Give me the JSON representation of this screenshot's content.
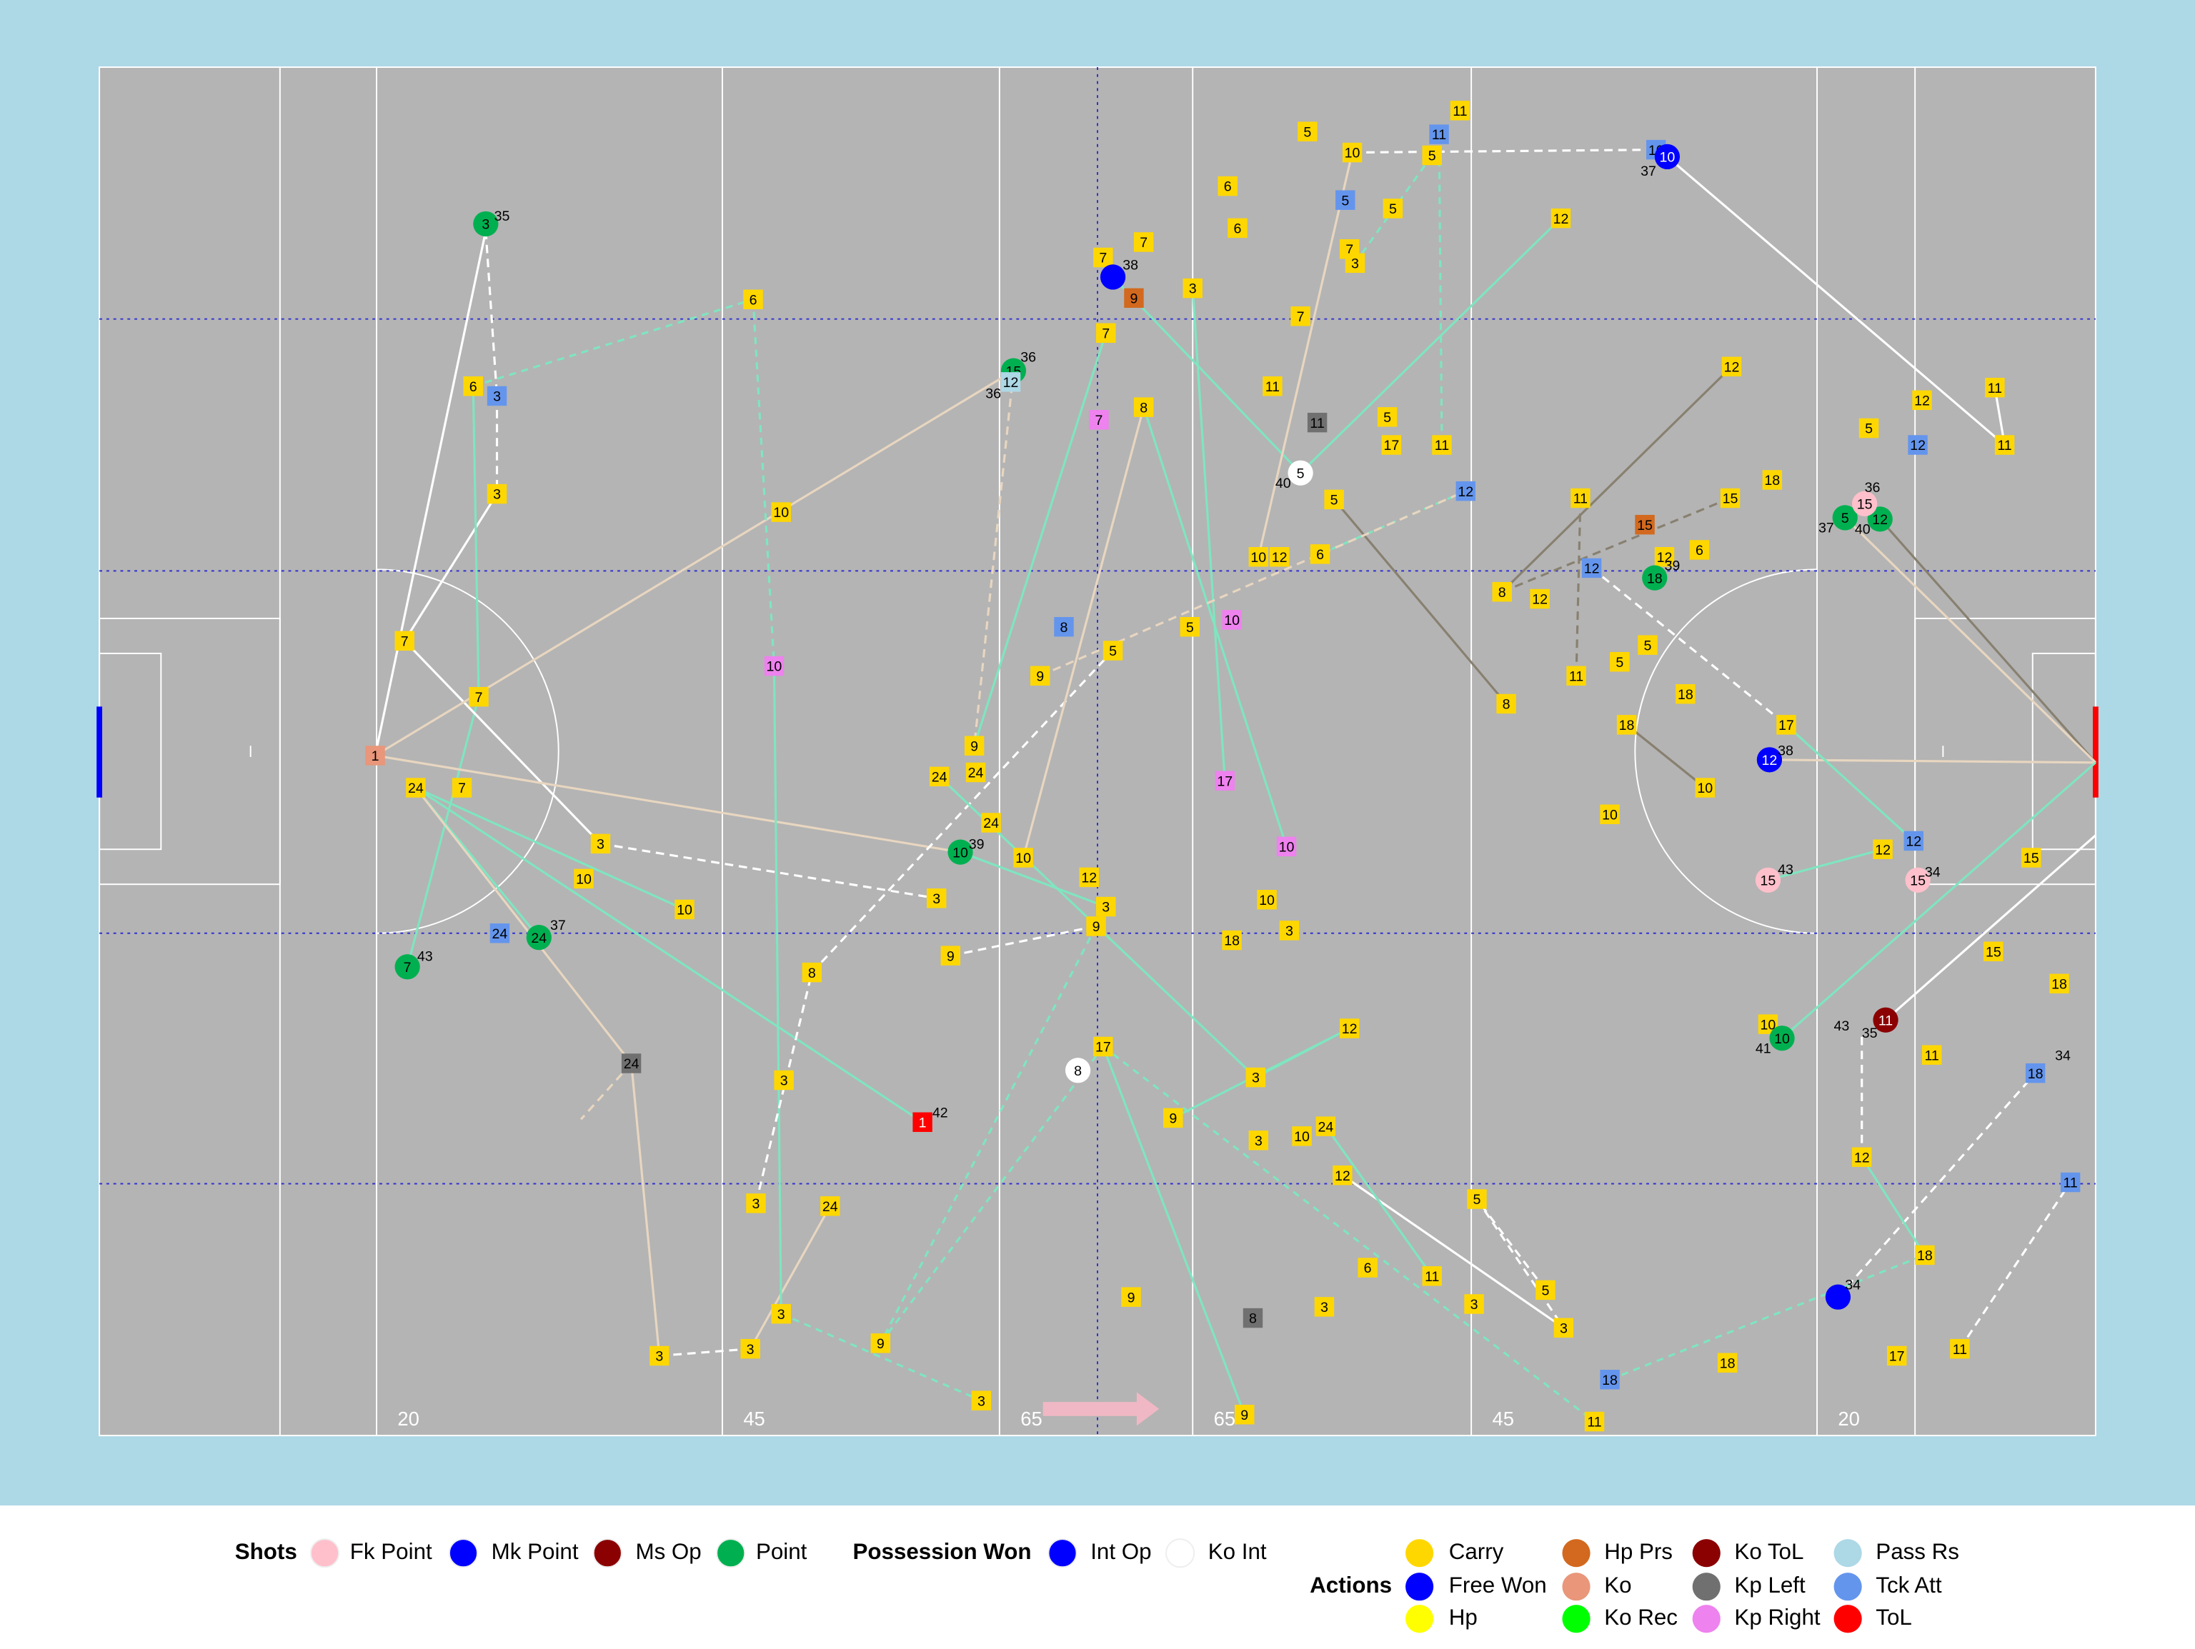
{
  "pitch": {
    "yard_labels": [
      "20",
      "45",
      "65",
      "65",
      "45",
      "20"
    ]
  },
  "legend": {
    "groups": [
      {
        "title": "Shots",
        "items": [
          {
            "name": "Fk Point",
            "color": "#ffc0cb"
          },
          {
            "name": "Mk Point",
            "color": "#0000ff"
          },
          {
            "name": "Ms Op",
            "color": "#8b0000"
          },
          {
            "name": "Point",
            "color": "#00b050"
          }
        ]
      },
      {
        "title": "Possession Won",
        "items": [
          {
            "name": "Int Op",
            "color": "#0000ff"
          },
          {
            "name": "Ko Int",
            "color": "#ffffff"
          }
        ]
      },
      {
        "title": "Actions",
        "items": [
          {
            "name": "Carry",
            "color": "#ffd700"
          },
          {
            "name": "Free Won",
            "color": "#0000ff"
          },
          {
            "name": "Hp",
            "color": "#ffff00"
          },
          {
            "name": "Hp Prs",
            "color": "#d2691e"
          },
          {
            "name": "Ko",
            "color": "#e9967a"
          },
          {
            "name": "Ko Rec",
            "color": "#00ff00"
          },
          {
            "name": "Ko ToL",
            "color": "#8b0000"
          },
          {
            "name": "Kp Left",
            "color": "#707070"
          },
          {
            "name": "Kp Right",
            "color": "#ee82ee"
          },
          {
            "name": "Pass Rs",
            "color": "#add8e6"
          },
          {
            "name": "Tck Att",
            "color": "#6495ed"
          },
          {
            "name": "ToL",
            "color": "#ff0000"
          }
        ]
      }
    ]
  },
  "events": [
    {
      "label": "3",
      "kind": "Point"
    },
    {
      "label": "6",
      "kind": "Carry"
    },
    {
      "label": "3",
      "kind": "Tck Att"
    },
    {
      "label": "3",
      "kind": "Carry"
    },
    {
      "label": "7",
      "kind": "Carry"
    },
    {
      "label": "7",
      "kind": "Carry"
    },
    {
      "label": "1",
      "kind": "Ko"
    },
    {
      "label": "24",
      "kind": "Carry"
    },
    {
      "label": "7",
      "kind": "Carry"
    },
    {
      "label": "3",
      "kind": "Carry"
    },
    {
      "label": "10",
      "kind": "Carry"
    },
    {
      "label": "10",
      "kind": "Carry"
    },
    {
      "label": "24",
      "kind": "Tck Att"
    },
    {
      "label": "24",
      "kind": "Point"
    },
    {
      "label": "7",
      "kind": "Point"
    },
    {
      "label": "24",
      "kind": "Kp Left"
    },
    {
      "label": "3",
      "kind": "Carry"
    },
    {
      "label": "3",
      "kind": "Carry"
    },
    {
      "label": "3",
      "kind": "Carry"
    },
    {
      "label": "3",
      "kind": "Carry"
    },
    {
      "label": "24",
      "kind": "Carry"
    },
    {
      "label": "3",
      "kind": "Carry"
    },
    {
      "label": "8",
      "kind": "Carry"
    },
    {
      "label": "10",
      "kind": "Kp Right"
    },
    {
      "label": "10",
      "kind": "Carry"
    },
    {
      "label": "6",
      "kind": "Carry"
    },
    {
      "label": "1",
      "kind": "ToL"
    },
    {
      "label": "9",
      "kind": "Carry"
    },
    {
      "label": "3",
      "kind": "Carry"
    },
    {
      "label": "15",
      "kind": "Point"
    },
    {
      "label": "12",
      "kind": "Pass Rs"
    },
    {
      "label": "9",
      "kind": "Carry"
    },
    {
      "label": "24",
      "kind": "Carry"
    },
    {
      "label": "24",
      "kind": "Carry"
    },
    {
      "label": "24",
      "kind": "Carry"
    },
    {
      "label": "10",
      "kind": "Point"
    },
    {
      "label": "10",
      "kind": "Carry"
    },
    {
      "label": "3",
      "kind": "Carry"
    },
    {
      "label": "9",
      "kind": "Carry"
    },
    {
      "label": "9",
      "kind": "Carry"
    },
    {
      "label": "8",
      "kind": "Tck Att"
    },
    {
      "label": "5",
      "kind": "Carry"
    },
    {
      "label": "7",
      "kind": "Carry"
    },
    {
      "kind": "Int Op"
    },
    {
      "label": "9",
      "kind": "Hp Prs"
    },
    {
      "label": "7",
      "kind": "Carry"
    },
    {
      "label": "7",
      "kind": "Carry"
    },
    {
      "label": "7",
      "kind": "Kp Right"
    },
    {
      "label": "8",
      "kind": "Carry"
    },
    {
      "label": "12",
      "kind": "Carry"
    },
    {
      "label": "3",
      "kind": "Carry"
    },
    {
      "label": "9",
      "kind": "Carry"
    },
    {
      "label": "17",
      "kind": "Carry"
    },
    {
      "label": "8",
      "kind": "Ko Int"
    },
    {
      "label": "9",
      "kind": "Carry"
    },
    {
      "label": "9",
      "kind": "Carry"
    },
    {
      "label": "3",
      "kind": "Carry"
    },
    {
      "label": "6",
      "kind": "Carry"
    },
    {
      "label": "6",
      "kind": "Carry"
    },
    {
      "label": "5",
      "kind": "Carry"
    },
    {
      "label": "10",
      "kind": "Carry"
    },
    {
      "label": "5",
      "kind": "Tck Att"
    },
    {
      "label": "5",
      "kind": "Carry"
    },
    {
      "label": "7",
      "kind": "Carry"
    },
    {
      "label": "3",
      "kind": "Carry"
    },
    {
      "label": "7",
      "kind": "Carry"
    },
    {
      "label": "11",
      "kind": "Carry"
    },
    {
      "label": "11",
      "kind": "Kp Left"
    },
    {
      "label": "5",
      "kind": "Ko Int"
    },
    {
      "label": "5",
      "kind": "Carry"
    },
    {
      "label": "5",
      "kind": "Carry"
    },
    {
      "label": "17",
      "kind": "Carry"
    },
    {
      "label": "11",
      "kind": "Carry"
    },
    {
      "label": "10",
      "kind": "Carry"
    },
    {
      "label": "12",
      "kind": "Carry"
    },
    {
      "label": "6",
      "kind": "Carry"
    },
    {
      "label": "5",
      "kind": "Carry"
    },
    {
      "label": "10",
      "kind": "Kp Right"
    },
    {
      "label": "17",
      "kind": "Kp Right"
    },
    {
      "label": "10",
      "kind": "Kp Right"
    },
    {
      "label": "10",
      "kind": "Carry"
    },
    {
      "label": "18",
      "kind": "Carry"
    },
    {
      "label": "3",
      "kind": "Carry"
    },
    {
      "label": "12",
      "kind": "Carry"
    },
    {
      "label": "3",
      "kind": "Carry"
    },
    {
      "label": "3",
      "kind": "Carry"
    },
    {
      "label": "10",
      "kind": "Carry"
    },
    {
      "label": "24",
      "kind": "Carry"
    },
    {
      "label": "12",
      "kind": "Carry"
    },
    {
      "label": "6",
      "kind": "Carry"
    },
    {
      "label": "3",
      "kind": "Carry"
    },
    {
      "label": "8",
      "kind": "Kp Left"
    },
    {
      "label": "9",
      "kind": "Carry"
    },
    {
      "label": "11",
      "kind": "Carry"
    },
    {
      "label": "5",
      "kind": "Carry"
    },
    {
      "label": "3",
      "kind": "Carry"
    },
    {
      "label": "5",
      "kind": "Carry"
    },
    {
      "label": "3",
      "kind": "Carry"
    },
    {
      "label": "18",
      "kind": "Tck Att"
    },
    {
      "label": "11",
      "kind": "Carry"
    },
    {
      "label": "18",
      "kind": "Carry"
    },
    {
      "label": "11",
      "kind": "Carry"
    },
    {
      "label": "11",
      "kind": "Tck Att"
    },
    {
      "label": "5",
      "kind": "Carry"
    },
    {
      "label": "12",
      "kind": "Carry"
    },
    {
      "label": "10",
      "kind": "Tck Att"
    },
    {
      "label": "10",
      "kind": "Int Op"
    },
    {
      "label": "12",
      "kind": "Tck Att"
    },
    {
      "label": "11",
      "kind": "Carry"
    },
    {
      "label": "15",
      "kind": "Hp Prs"
    },
    {
      "label": "12",
      "kind": "Carry"
    },
    {
      "label": "18",
      "kind": "Point"
    },
    {
      "label": "6",
      "kind": "Carry"
    },
    {
      "label": "15",
      "kind": "Carry"
    },
    {
      "label": "18",
      "kind": "Carry"
    },
    {
      "label": "12",
      "kind": "Tck Att"
    },
    {
      "label": "8",
      "kind": "Carry"
    },
    {
      "label": "12",
      "kind": "Carry"
    },
    {
      "label": "8",
      "kind": "Carry"
    },
    {
      "label": "11",
      "kind": "Carry"
    },
    {
      "label": "5",
      "kind": "Carry"
    },
    {
      "label": "5",
      "kind": "Carry"
    },
    {
      "label": "18",
      "kind": "Carry"
    },
    {
      "label": "18",
      "kind": "Carry"
    },
    {
      "label": "10",
      "kind": "Carry"
    },
    {
      "label": "10",
      "kind": "Carry"
    },
    {
      "label": "12",
      "kind": "Carry"
    },
    {
      "label": "5",
      "kind": "Carry"
    },
    {
      "label": "12",
      "kind": "Carry"
    },
    {
      "label": "11",
      "kind": "Carry"
    },
    {
      "label": "11",
      "kind": "Carry"
    },
    {
      "label": "12",
      "kind": "Tck Att"
    },
    {
      "label": "5",
      "kind": "Point"
    },
    {
      "label": "12",
      "kind": "Point"
    },
    {
      "label": "15",
      "kind": "Fk Point"
    },
    {
      "label": "12",
      "kind": "Int Op"
    },
    {
      "label": "17",
      "kind": "Carry"
    },
    {
      "label": "12",
      "kind": "Tck Att"
    },
    {
      "label": "12",
      "kind": "Carry"
    },
    {
      "label": "15",
      "kind": "Fk Point"
    },
    {
      "label": "15",
      "kind": "Fk Point"
    },
    {
      "label": "15",
      "kind": "Carry"
    },
    {
      "label": "15",
      "kind": "Carry"
    },
    {
      "label": "18",
      "kind": "Carry"
    },
    {
      "label": "11",
      "kind": "Ms Op"
    },
    {
      "label": "10",
      "kind": "Carry"
    },
    {
      "label": "10",
      "kind": "Point"
    },
    {
      "label": "12",
      "kind": "Carry"
    },
    {
      "label": "18",
      "kind": "Carry"
    },
    {
      "kind": "Int Op"
    },
    {
      "label": "17",
      "kind": "Carry"
    },
    {
      "label": "11",
      "kind": "Carry"
    },
    {
      "label": "11",
      "kind": "Tck Att"
    },
    {
      "label": "18",
      "kind": "Tck Att"
    },
    {
      "label": "11",
      "kind": "Carry"
    }
  ],
  "notes": [
    "35",
    "36",
    "36",
    "37",
    "43",
    "39",
    "42",
    "38",
    "40",
    "37",
    "39",
    "36",
    "37",
    "40",
    "38",
    "43",
    "34",
    "43",
    "35",
    "41",
    "34",
    "34"
  ]
}
